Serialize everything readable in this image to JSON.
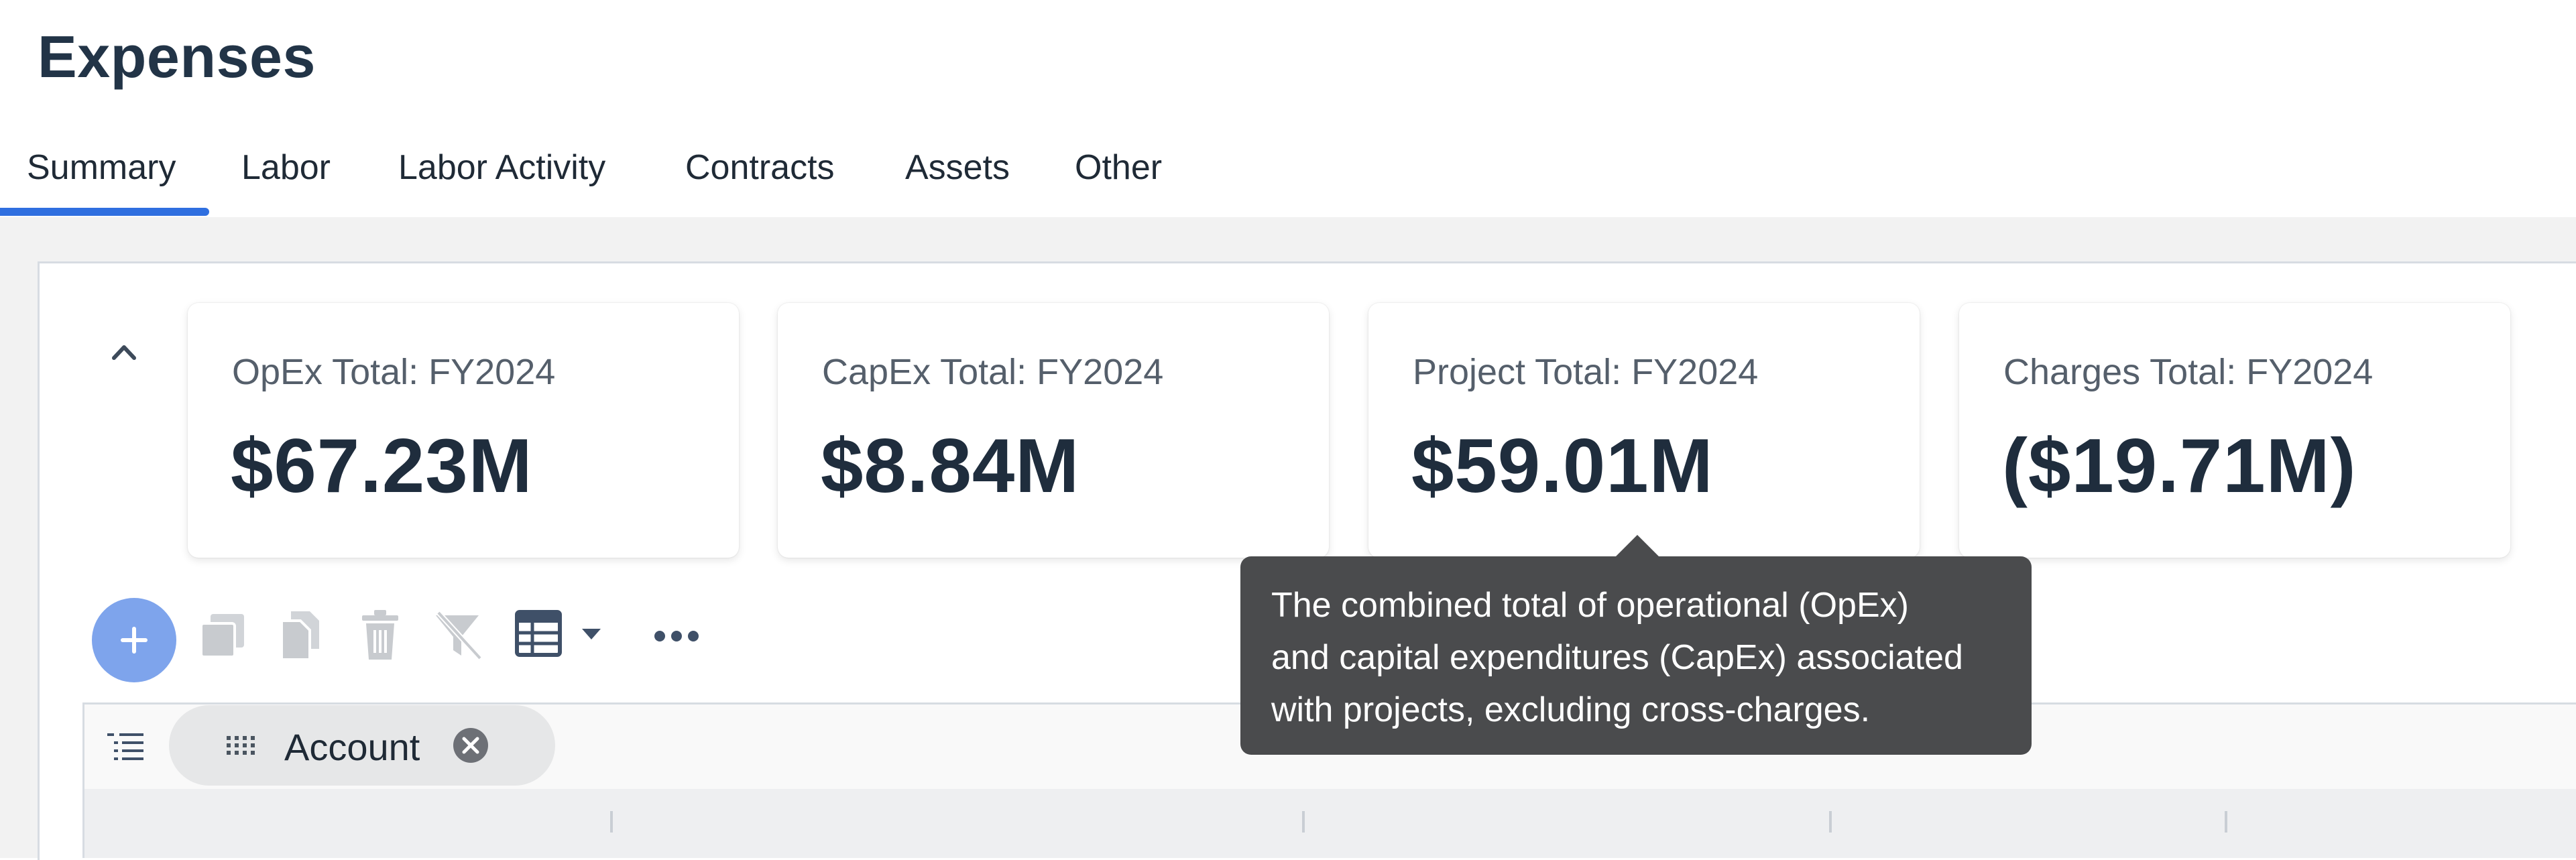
{
  "page": {
    "title": "Expenses"
  },
  "tabs": [
    {
      "label": "Summary",
      "active": true
    },
    {
      "label": "Labor"
    },
    {
      "label": "Labor Activity"
    },
    {
      "label": "Contracts"
    },
    {
      "label": "Assets"
    },
    {
      "label": "Other"
    }
  ],
  "cards": [
    {
      "label": "OpEx Total: FY2024",
      "value": "$67.23M"
    },
    {
      "label": "CapEx Total: FY2024",
      "value": "$8.84M"
    },
    {
      "label": "Project Total: FY2024",
      "value": "$59.01M"
    },
    {
      "label": "Charges Total: FY2024",
      "value": "($19.71M)"
    }
  ],
  "tooltip": {
    "lines": [
      "The combined total of operational (OpEx)",
      "and capital expenditures (CapEx) associated",
      "with projects, excluding cross-charges."
    ]
  },
  "toolbar": {
    "icons": [
      "add-icon",
      "copy-icon",
      "duplicate-icon",
      "delete-icon",
      "clear-filter-icon",
      "table-view-icon",
      "dropdown-caret-icon",
      "more-icon"
    ]
  },
  "grouping": {
    "chip_label": "Account"
  },
  "colors": {
    "accent": "#2f6fe0",
    "fab": "#7ea4ec",
    "tooltip_bg": "#4a4b4d",
    "title": "#223447"
  }
}
